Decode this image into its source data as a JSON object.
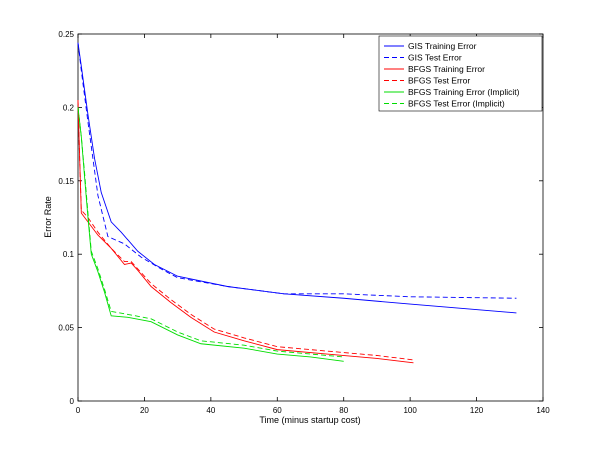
{
  "chart_data": {
    "type": "line",
    "title": "",
    "xlabel": "Time (minus startup cost)",
    "ylabel": "Error Rate",
    "xlim": [
      0,
      140
    ],
    "ylim": [
      0,
      0.25
    ],
    "xticks": [
      0,
      20,
      40,
      60,
      80,
      100,
      120,
      140
    ],
    "yticks": [
      0,
      0.05,
      0.1,
      0.15,
      0.2,
      0.25
    ],
    "xtick_labels": [
      "0",
      "20",
      "40",
      "60",
      "80",
      "100",
      "120",
      "140"
    ],
    "ytick_labels": [
      "0",
      "0.05",
      "0.1",
      "0.15",
      "0.2",
      "0.25"
    ],
    "grid": false,
    "legend_position": "top-right",
    "series": [
      {
        "name": "GIS Training Error",
        "color": "#0000ff",
        "dash": "solid",
        "points": [
          [
            0,
            0.244
          ],
          [
            1,
            0.228
          ],
          [
            3,
            0.195
          ],
          [
            5,
            0.165
          ],
          [
            7,
            0.142
          ],
          [
            10,
            0.122
          ],
          [
            13,
            0.115
          ],
          [
            18,
            0.102
          ],
          [
            23,
            0.093
          ],
          [
            30,
            0.085
          ],
          [
            45,
            0.078
          ],
          [
            62,
            0.073
          ],
          [
            80,
            0.07
          ],
          [
            100,
            0.066
          ],
          [
            132,
            0.06
          ]
        ]
      },
      {
        "name": "GIS Test Error",
        "color": "#0000ff",
        "dash": "dashed",
        "points": [
          [
            0,
            0.244
          ],
          [
            1,
            0.225
          ],
          [
            3,
            0.19
          ],
          [
            6,
            0.14
          ],
          [
            9,
            0.112
          ],
          [
            14,
            0.107
          ],
          [
            19,
            0.098
          ],
          [
            25,
            0.09
          ],
          [
            30,
            0.084
          ],
          [
            45,
            0.078
          ],
          [
            62,
            0.073
          ],
          [
            80,
            0.073
          ],
          [
            100,
            0.071
          ],
          [
            132,
            0.07
          ]
        ]
      },
      {
        "name": "BFGS Training Error",
        "color": "#ff0000",
        "dash": "solid",
        "points": [
          [
            0,
            0.205
          ],
          [
            0.5,
            0.165
          ],
          [
            1,
            0.128
          ],
          [
            3,
            0.122
          ],
          [
            6,
            0.113
          ],
          [
            10,
            0.104
          ],
          [
            14,
            0.093
          ],
          [
            16,
            0.094
          ],
          [
            18,
            0.089
          ],
          [
            22,
            0.078
          ],
          [
            28,
            0.067
          ],
          [
            34,
            0.057
          ],
          [
            41,
            0.047
          ],
          [
            50,
            0.041
          ],
          [
            60,
            0.035
          ],
          [
            75,
            0.032
          ],
          [
            90,
            0.029
          ],
          [
            101,
            0.026
          ]
        ]
      },
      {
        "name": "BFGS Test Error",
        "color": "#ff0000",
        "dash": "dashed",
        "points": [
          [
            0,
            0.205
          ],
          [
            0.5,
            0.165
          ],
          [
            1,
            0.13
          ],
          [
            3,
            0.125
          ],
          [
            6,
            0.115
          ],
          [
            10,
            0.104
          ],
          [
            14,
            0.095
          ],
          [
            16,
            0.095
          ],
          [
            18,
            0.09
          ],
          [
            22,
            0.08
          ],
          [
            28,
            0.069
          ],
          [
            34,
            0.059
          ],
          [
            41,
            0.049
          ],
          [
            50,
            0.043
          ],
          [
            60,
            0.037
          ],
          [
            75,
            0.034
          ],
          [
            90,
            0.031
          ],
          [
            101,
            0.028
          ]
        ]
      },
      {
        "name": "BFGS Training Error (Implicit)",
        "color": "#00dd00",
        "dash": "solid",
        "points": [
          [
            0,
            0.2
          ],
          [
            1,
            0.18
          ],
          [
            2,
            0.152
          ],
          [
            3,
            0.125
          ],
          [
            4,
            0.1
          ],
          [
            6,
            0.088
          ],
          [
            8,
            0.074
          ],
          [
            10,
            0.058
          ],
          [
            15,
            0.057
          ],
          [
            22,
            0.054
          ],
          [
            30,
            0.045
          ],
          [
            37,
            0.039
          ],
          [
            50,
            0.036
          ],
          [
            60,
            0.032
          ],
          [
            70,
            0.03
          ],
          [
            80,
            0.027
          ]
        ]
      },
      {
        "name": "BFGS Test Error (Implicit)",
        "color": "#00dd00",
        "dash": "dashed",
        "points": [
          [
            0,
            0.2
          ],
          [
            1,
            0.18
          ],
          [
            2,
            0.155
          ],
          [
            3,
            0.128
          ],
          [
            4,
            0.102
          ],
          [
            6,
            0.09
          ],
          [
            8,
            0.076
          ],
          [
            10,
            0.061
          ],
          [
            15,
            0.059
          ],
          [
            22,
            0.056
          ],
          [
            30,
            0.047
          ],
          [
            37,
            0.041
          ],
          [
            50,
            0.038
          ],
          [
            60,
            0.034
          ],
          [
            70,
            0.032
          ],
          [
            80,
            0.03
          ]
        ]
      }
    ]
  }
}
